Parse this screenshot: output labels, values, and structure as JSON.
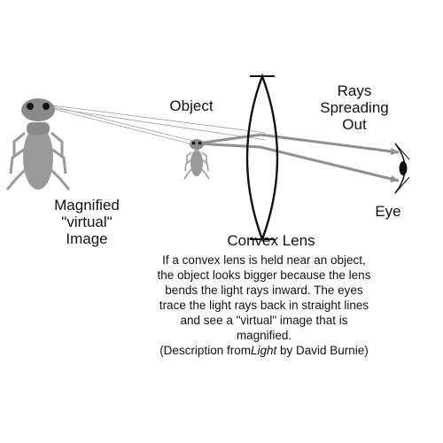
{
  "labels": {
    "object": "Object",
    "rays_line1": "Rays",
    "rays_line2": "Spreading",
    "rays_line3": "Out",
    "magnified_line1": "Magnified",
    "magnified_line2": "\"virtual\"",
    "magnified_line3": "Image",
    "eye": "Eye",
    "lens": "Convex Lens"
  },
  "caption": {
    "line1": "If a convex lens is held near an object,",
    "line2": "the object looks bigger because the lens",
    "line3": "bends the light rays inward.  The eyes",
    "line4": "trace the light rays back in straight lines",
    "line5": "and see a \"virtual\" image that is",
    "line6": "magnified.",
    "credit_prefix": "(Description from",
    "credit_title": "Light",
    "credit_suffix": " by David Burnie)"
  },
  "colors": {
    "bug_body": "#9a9a9a",
    "bug_head": "#8a8a8a",
    "ray": "#909090",
    "ink": "#111111"
  }
}
